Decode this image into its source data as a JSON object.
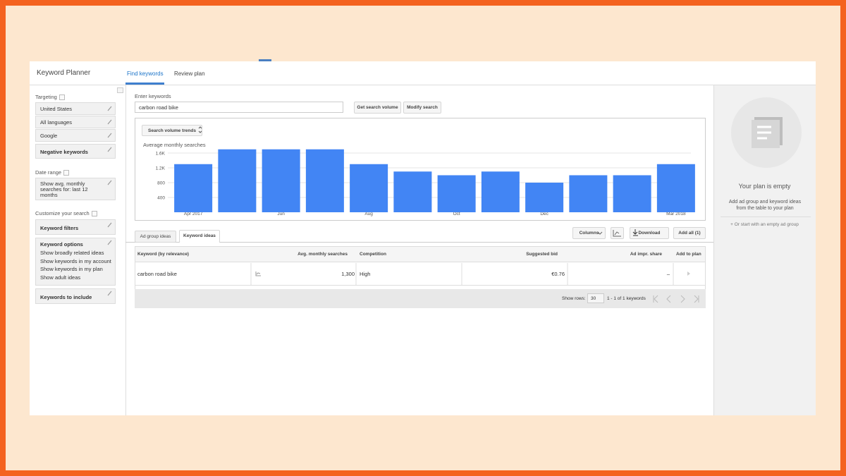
{
  "header": {
    "app_title": "Keyword Planner",
    "tabs": [
      "Find keywords",
      "Review plan"
    ]
  },
  "sidebar": {
    "targeting": {
      "title": "Targeting",
      "items": [
        "United States",
        "All languages",
        "Google",
        "Negative keywords"
      ]
    },
    "date_range": {
      "title": "Date range",
      "value": "Show avg. monthly searches for: last 12 months"
    },
    "customize": {
      "title": "Customize your search",
      "keyword_filters": "Keyword filters",
      "keyword_options": {
        "title": "Keyword options",
        "items": [
          "Show broadly related ideas",
          "Show keywords in my account",
          "Show keywords in my plan",
          "Show adult ideas"
        ]
      },
      "keywords_to_include": "Keywords to include"
    }
  },
  "search": {
    "label": "Enter keywords",
    "input": "carbon road bike",
    "buttons": [
      "Get search volume",
      "Modify search"
    ],
    "chart_selector": "Search volume trends"
  },
  "chart_data": {
    "type": "bar",
    "title": "Average monthly searches",
    "categories": [
      "Apr 2017",
      null,
      "Jun",
      null,
      "Aug",
      null,
      "Oct",
      null,
      "Dec",
      null,
      null,
      "Mar 2018"
    ],
    "values": [
      1300,
      1700,
      1700,
      1700,
      1300,
      1100,
      1000,
      1100,
      800,
      1000,
      1000,
      1300
    ],
    "color": "#4285f4",
    "ylim": [
      0,
      1800
    ],
    "yticks": [
      400,
      800,
      {
        "value": 1200,
        "label": "1.2K"
      },
      {
        "value": 1600,
        "label": "1.6K"
      }
    ],
    "grid": true
  },
  "ideas": {
    "tabs": [
      "Ad group ideas",
      "Keyword ideas"
    ],
    "actions": [
      "Columns",
      "Download",
      "Add all (1)"
    ]
  },
  "table": {
    "columns": [
      "Keyword (by relevance)",
      "Avg. monthly searches",
      "Competition",
      "Suggested bid",
      "Ad impr. share",
      "Add to plan"
    ],
    "rows": [
      [
        "carbon road bike",
        "1,300",
        "High",
        "€0.76",
        "–"
      ]
    ]
  },
  "pagination": {
    "show_rows_label": "Show rows:",
    "rows_per_page": "30",
    "range": "1 - 1 of 1 keywords"
  },
  "plan": {
    "title": "Your plan is empty",
    "text": "Add ad group and keyword ideas from the table to your plan",
    "link": "+ Or start with an empty ad group"
  }
}
